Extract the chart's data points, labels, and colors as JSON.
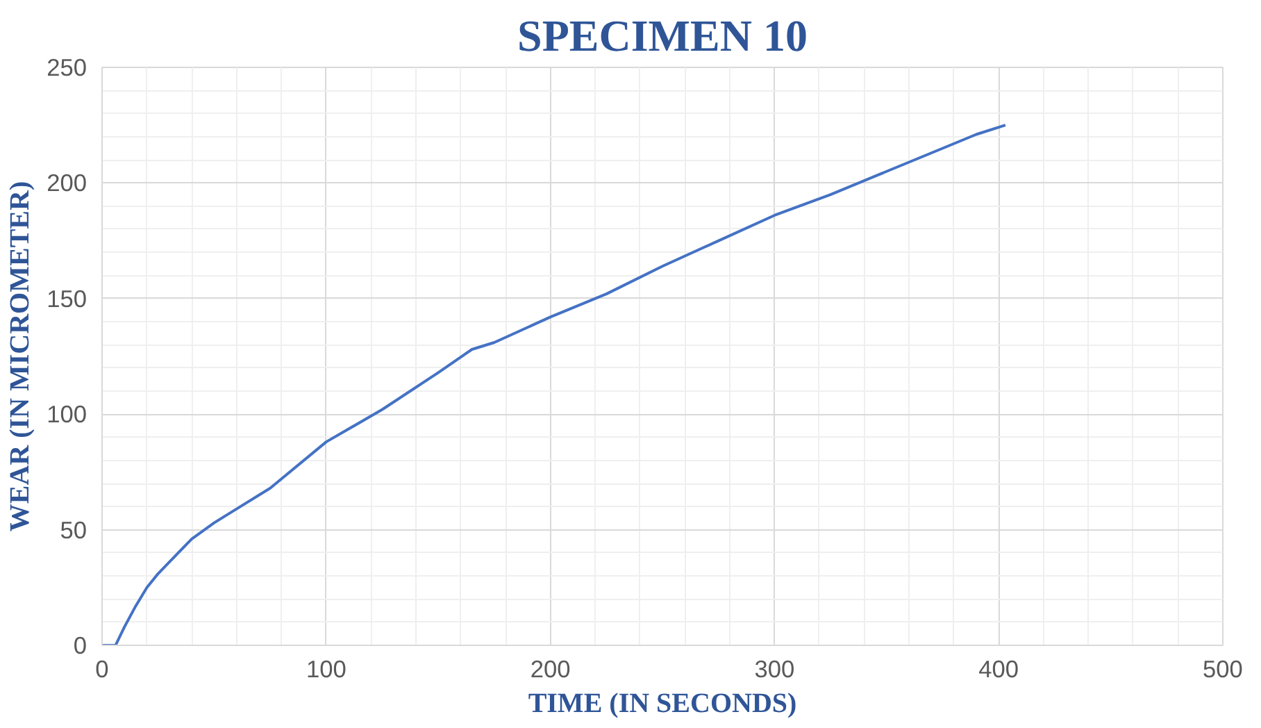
{
  "chart_data": {
    "type": "line",
    "title": "SPECIMEN 10",
    "xlabel": "TIME (IN SECONDS)",
    "ylabel": "WEAR (IN MICROMETER)",
    "x": [
      0,
      6,
      10,
      15,
      20,
      25,
      30,
      40,
      50,
      60,
      75,
      100,
      125,
      150,
      165,
      175,
      200,
      225,
      250,
      275,
      300,
      325,
      350,
      375,
      390,
      403
    ],
    "series": [
      {
        "color": "#4472c4",
        "values": [
          0,
          0,
          8,
          17,
          25,
          31,
          36,
          46,
          53,
          59,
          68,
          88,
          102,
          118,
          128,
          131,
          142,
          152,
          164,
          175,
          186,
          195,
          205,
          215,
          221,
          225
        ]
      }
    ],
    "xlim": [
      0,
      500
    ],
    "ylim": [
      0,
      250
    ],
    "xticks": [
      0,
      100,
      200,
      300,
      400,
      500
    ],
    "yticks": [
      0,
      50,
      100,
      150,
      200,
      250
    ],
    "grid": true,
    "marker": "none",
    "line_style": "solid"
  }
}
